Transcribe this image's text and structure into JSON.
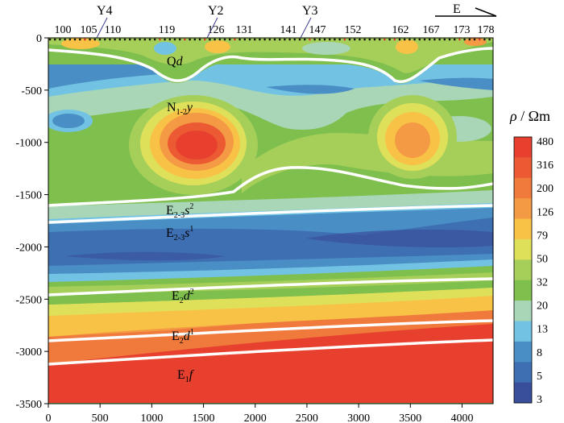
{
  "stations": [
    "100",
    "105",
    "110",
    "119",
    "126",
    "131",
    "141",
    "147",
    "152",
    "162",
    "167",
    "173",
    "178"
  ],
  "wells": [
    "Y4",
    "Y2",
    "Y3"
  ],
  "direction": "E",
  "x_axis": {
    "ticks": [
      "0",
      "500",
      "1000",
      "1500",
      "2000",
      "2500",
      "3000",
      "3500",
      "4000"
    ]
  },
  "y_axis": {
    "ticks": [
      "0",
      "-500",
      "-1000",
      "-1500",
      "-2000",
      "-2500",
      "-3000",
      "-3500"
    ]
  },
  "layers": [
    {
      "base": "Q",
      "ital": "d",
      "sub": "",
      "sup": ""
    },
    {
      "base": "N",
      "sub": "1-2",
      "ital": "y",
      "sup": ""
    },
    {
      "base": "E",
      "sub": "2-3",
      "ital": "s",
      "sup": "2"
    },
    {
      "base": "E",
      "sub": "2-3",
      "ital": "s",
      "sup": "1"
    },
    {
      "base": "E",
      "sub": "2",
      "ital": "d",
      "sup": "2"
    },
    {
      "base": "E",
      "sub": "2",
      "ital": "d",
      "sup": "1"
    },
    {
      "base": "E",
      "sub": "1",
      "ital": "f",
      "sup": ""
    }
  ],
  "colorbar": {
    "title_sym": "ρ",
    "title_unit": "Ωm",
    "labels": [
      "480",
      "316",
      "200",
      "126",
      "79",
      "50",
      "32",
      "20",
      "13",
      "8",
      "5",
      "3"
    ],
    "colors": [
      "#e8402e",
      "#ec5a34",
      "#ef7a3c",
      "#f49a44",
      "#f8c246",
      "#dfe05a",
      "#a6cf5a",
      "#7fbf4e",
      "#a8d6b6",
      "#72c3e3",
      "#4a8ec6",
      "#3e6fb2",
      "#3a4f9c"
    ]
  }
}
